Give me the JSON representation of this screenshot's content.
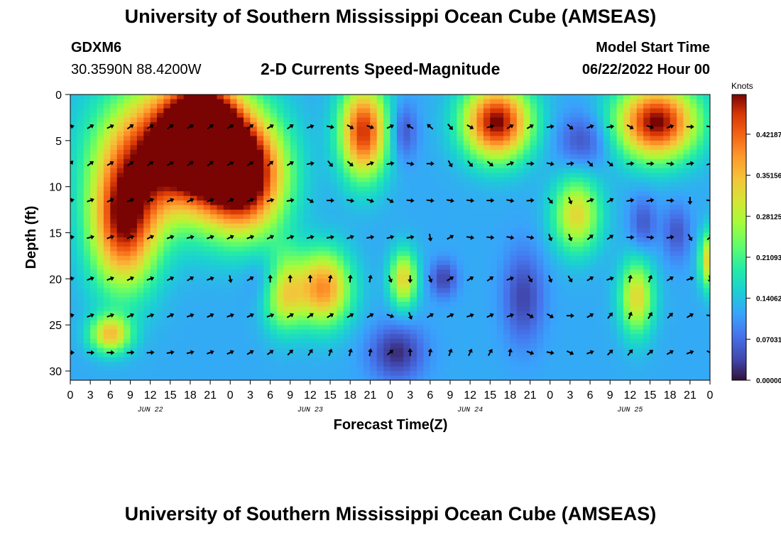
{
  "header": {
    "title": "University of Southern Mississippi Ocean Cube (AMSEAS)",
    "station": "GDXM6",
    "coords": "30.3590N  88.4200W",
    "subtitle": "2-D Currents Speed-Magnitude",
    "model_start_label": "Model Start Time",
    "model_start_value": "06/22/2022 Hour 00"
  },
  "footer": {
    "title": "University of Southern Mississippi Ocean Cube (AMSEAS)"
  },
  "chart_data": {
    "type": "heatmap",
    "title": "2-D Currents Speed-Magnitude",
    "xlabel": "Forecast Time(Z)",
    "ylabel": "Depth (ft)",
    "x_hours": [
      0,
      3,
      6,
      9,
      12,
      15,
      18,
      21,
      24,
      27,
      30,
      33,
      36,
      39,
      42,
      45,
      48,
      51,
      54,
      57,
      60,
      63,
      66,
      69,
      72,
      75,
      78,
      81,
      84,
      87,
      90,
      93,
      96
    ],
    "x_tick_labels": [
      "0",
      "3",
      "6",
      "9",
      "12",
      "15",
      "18",
      "21",
      "0",
      "3",
      "6",
      "9",
      "12",
      "15",
      "18",
      "21",
      "0",
      "3",
      "6",
      "9",
      "12",
      "15",
      "18",
      "21",
      "0",
      "3",
      "6",
      "9",
      "12",
      "15",
      "18",
      "21",
      "0"
    ],
    "day_labels": [
      {
        "label": "JUN 22",
        "hour": 12
      },
      {
        "label": "JUN 23",
        "hour": 36
      },
      {
        "label": "JUN 24",
        "hour": 60
      },
      {
        "label": "JUN 25",
        "hour": 84
      }
    ],
    "y_ticks": [
      0,
      5,
      10,
      15,
      20,
      25,
      30
    ],
    "ylim": [
      31,
      0
    ],
    "xlim": [
      0,
      96
    ],
    "depth_levels_ft": [
      3.5,
      7.5,
      11.5,
      15.5,
      20,
      24,
      28
    ],
    "colorbar": {
      "unit": "Knots",
      "ticks": [
        "0.42187",
        "0.35156",
        "0.28125",
        "0.21093",
        "0.14062",
        "0.07031",
        "0.00000"
      ],
      "range": [
        0,
        0.49
      ]
    },
    "speed_hotspots": [
      {
        "hour": 16,
        "depth": 6,
        "hw": 10,
        "hd": 7,
        "speed": 0.48
      },
      {
        "hour": 8,
        "depth": 14,
        "hw": 5,
        "hd": 7,
        "speed": 0.4
      },
      {
        "hour": 26,
        "depth": 9,
        "hw": 6,
        "hd": 6,
        "speed": 0.46
      },
      {
        "hour": 20,
        "depth": 4,
        "hw": 5,
        "hd": 5,
        "speed": 0.46
      },
      {
        "hour": 44,
        "depth": 4,
        "hw": 3.5,
        "hd": 5,
        "speed": 0.4
      },
      {
        "hour": 64,
        "depth": 3,
        "hw": 5,
        "hd": 4,
        "speed": 0.44
      },
      {
        "hour": 88,
        "depth": 3,
        "hw": 6,
        "hd": 4,
        "speed": 0.44
      },
      {
        "hour": 32,
        "depth": 21,
        "hw": 3,
        "hd": 4,
        "speed": 0.3
      },
      {
        "hour": 38,
        "depth": 21,
        "hw": 4,
        "hd": 4,
        "speed": 0.32
      },
      {
        "hour": 85,
        "depth": 22,
        "hw": 2.5,
        "hd": 4,
        "speed": 0.24
      },
      {
        "hour": 76,
        "depth": 13,
        "hw": 3.5,
        "hd": 4,
        "speed": 0.24
      },
      {
        "hour": 50,
        "depth": 20,
        "hw": 2,
        "hd": 3,
        "speed": 0.25
      },
      {
        "hour": 96,
        "depth": 18,
        "hw": 1.5,
        "hd": 3,
        "speed": 0.26
      },
      {
        "hour": 6,
        "depth": 26,
        "hw": 3,
        "hd": 2,
        "speed": 0.26
      },
      {
        "hour": 49,
        "depth": 28,
        "hw": 4,
        "hd": 3,
        "speed": -0.12
      },
      {
        "hour": 31,
        "depth": 20,
        "hw": 3.5,
        "hd": 3,
        "speed": -0.12
      },
      {
        "hour": 56,
        "depth": 20,
        "hw": 2,
        "hd": 2,
        "speed": -0.1
      },
      {
        "hour": 68,
        "depth": 22,
        "hw": 3,
        "hd": 5,
        "speed": -0.1
      },
      {
        "hour": 50,
        "depth": 4,
        "hw": 2,
        "hd": 3,
        "speed": -0.09
      },
      {
        "hour": 77,
        "depth": 5,
        "hw": 4,
        "hd": 3,
        "speed": -0.09
      },
      {
        "hour": 86,
        "depth": 14,
        "hw": 2,
        "hd": 3,
        "speed": -0.08
      },
      {
        "hour": 91,
        "depth": 15,
        "hw": 2,
        "hd": 3,
        "speed": -0.08
      }
    ],
    "background_speed": 0.12,
    "arrows": [
      {
        "depth": 3.5,
        "dirs": [
          75,
          60,
          65,
          55,
          60,
          55,
          60,
          55,
          60,
          55,
          60,
          55,
          70,
          100,
          120,
          110,
          65,
          300,
          310,
          140,
          120,
          75,
          60,
          60,
          80,
          130,
          70,
          80,
          120,
          110,
          70,
          90,
          100
        ]
      },
      {
        "depth": 7.5,
        "dirs": [
          45,
          55,
          60,
          55,
          55,
          60,
          55,
          50,
          60,
          55,
          50,
          60,
          80,
          140,
          130,
          70,
          80,
          100,
          90,
          150,
          140,
          130,
          70,
          90,
          100,
          85,
          135,
          130,
          85,
          90,
          95,
          80,
          70
        ]
      },
      {
        "depth": 11.5,
        "dirs": [
          75,
          70,
          65,
          70,
          65,
          70,
          65,
          70,
          65,
          70,
          75,
          80,
          120,
          90,
          100,
          110,
          120,
          95,
          95,
          100,
          95,
          90,
          100,
          85,
          140,
          160,
          70,
          60,
          80,
          80,
          90,
          180,
          95
        ]
      },
      {
        "depth": 15.5,
        "dirs": [
          80,
          75,
          70,
          70,
          65,
          70,
          75,
          70,
          65,
          70,
          65,
          70,
          75,
          80,
          70,
          80,
          75,
          80,
          170,
          60,
          100,
          95,
          100,
          100,
          160,
          160,
          50,
          55,
          90,
          95,
          80,
          150,
          50
        ]
      },
      {
        "depth": 20,
        "dirs": [
          75,
          70,
          70,
          65,
          70,
          65,
          60,
          70,
          170,
          60,
          0,
          0,
          0,
          10,
          5,
          10,
          160,
          180,
          160,
          60,
          60,
          55,
          70,
          150,
          160,
          150,
          60,
          70,
          10,
          20,
          60,
          70,
          170
        ]
      },
      {
        "depth": 24,
        "dirs": [
          75,
          70,
          70,
          65,
          70,
          65,
          70,
          65,
          70,
          65,
          70,
          60,
          55,
          60,
          60,
          60,
          110,
          160,
          60,
          65,
          70,
          65,
          70,
          120,
          120,
          90,
          60,
          40,
          20,
          30,
          45,
          60,
          100
        ]
      },
      {
        "depth": 28,
        "dirs": [
          90,
          90,
          90,
          85,
          85,
          80,
          75,
          70,
          65,
          60,
          55,
          45,
          35,
          20,
          15,
          10,
          50,
          0,
          10,
          20,
          25,
          30,
          10,
          110,
          100,
          115,
          70,
          45,
          40,
          50,
          60,
          70,
          120
        ]
      }
    ]
  }
}
